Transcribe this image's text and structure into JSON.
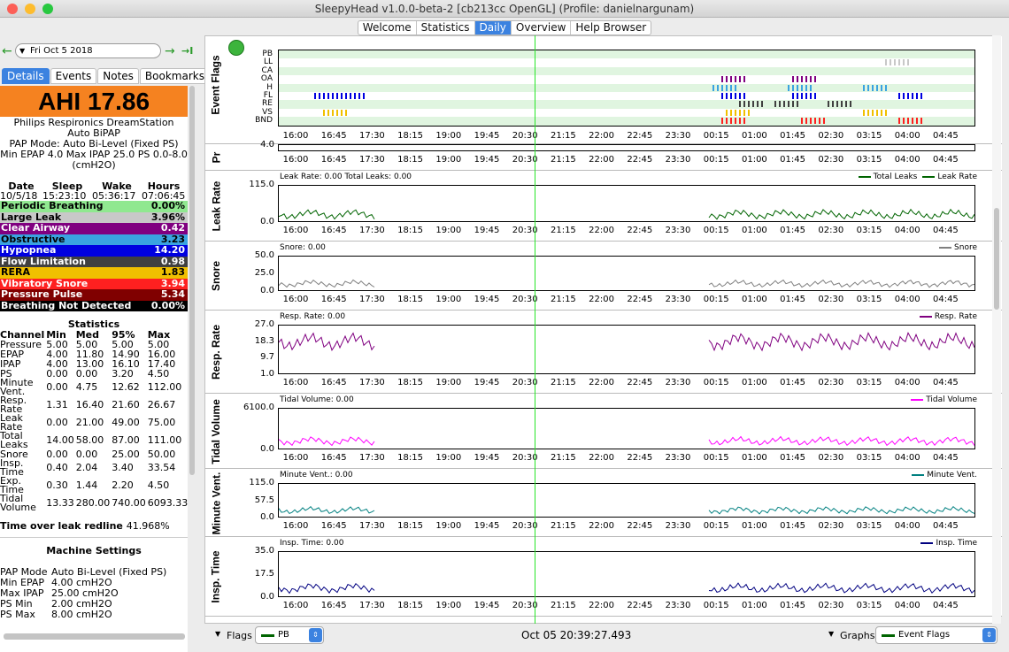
{
  "window": {
    "title": "SleepyHead v1.0.0-beta-2 [cb213cc OpenGL] (Profile: danielnargunam)"
  },
  "nav_tabs": [
    {
      "label": "Welcome"
    },
    {
      "label": "Statistics"
    },
    {
      "label": "Daily"
    },
    {
      "label": "Overview"
    },
    {
      "label": "Help Browser"
    }
  ],
  "date": {
    "value": "Fri Oct 5 2018",
    "prev_icon": "←",
    "next_icon": "→",
    "last_icon": "→I"
  },
  "left_tabs": [
    {
      "label": "Details"
    },
    {
      "label": "Events"
    },
    {
      "label": "Notes"
    },
    {
      "label": "Bookmarks"
    }
  ],
  "ahi": "AHI 17.86",
  "device": {
    "name": "Philips Respironics DreamStation",
    "model": "Auto BiPAP",
    "mode": "PAP Mode: Auto Bi-Level (Fixed PS)",
    "settings": "Min EPAP 4.0 Max IPAP 25.0 PS 0.0-8.0",
    "unit": "(cmH2O)"
  },
  "sleep": {
    "headers": [
      "Date",
      "Sleep",
      "Wake",
      "Hours"
    ],
    "values": [
      "10/5/18",
      "15:23:10",
      "05:36:17",
      "07:06:45"
    ]
  },
  "events": [
    {
      "label": "Periodic Breathing",
      "value": "0.00%",
      "bg": "#90e890",
      "fg": "#000"
    },
    {
      "label": "Large Leak",
      "value": "3.96%",
      "bg": "#c8c8c8",
      "fg": "#000"
    },
    {
      "label": "Clear Airway",
      "value": "0.42",
      "bg": "#800080",
      "fg": "#fff"
    },
    {
      "label": "Obstructive",
      "value": "3.23",
      "bg": "#3aa3e0",
      "fg": "#000"
    },
    {
      "label": "Hypopnea",
      "value": "14.20",
      "bg": "#0000e0",
      "fg": "#fff"
    },
    {
      "label": "Flow Limitation",
      "value": "0.98",
      "bg": "#404040",
      "fg": "#fff"
    },
    {
      "label": "RERA",
      "value": "1.83",
      "bg": "#f0c000",
      "fg": "#000"
    },
    {
      "label": "Vibratory Snore",
      "value": "3.94",
      "bg": "#ff2020",
      "fg": "#fff"
    },
    {
      "label": "Pressure Pulse",
      "value": "5.34",
      "bg": "#800000",
      "fg": "#fff"
    },
    {
      "label": "Breathing Not Detected",
      "value": "0.00%",
      "bg": "#000000",
      "fg": "#fff"
    }
  ],
  "statistics": {
    "title": "Statistics",
    "headers": [
      "Channel",
      "Min",
      "Med",
      "95%",
      "Max"
    ],
    "rows": [
      [
        "Pressure",
        "5.00",
        "5.00",
        "5.00",
        "5.00"
      ],
      [
        "EPAP",
        "4.00",
        "11.80",
        "14.90",
        "16.00"
      ],
      [
        "IPAP",
        "4.00",
        "13.00",
        "16.10",
        "17.40"
      ],
      [
        "PS",
        "0.00",
        "0.00",
        "3.20",
        "4.50"
      ],
      [
        "Minute Vent.",
        "0.00",
        "4.75",
        "12.62",
        "112.00"
      ],
      [
        "Resp. Rate",
        "1.31",
        "16.40",
        "21.60",
        "26.67"
      ],
      [
        "Leak Rate",
        "0.00",
        "21.00",
        "49.00",
        "75.00"
      ],
      [
        "Total Leaks",
        "14.00",
        "58.00",
        "87.00",
        "111.00"
      ],
      [
        "Snore",
        "0.00",
        "0.00",
        "25.00",
        "50.00"
      ],
      [
        "Insp. Time",
        "0.40",
        "2.04",
        "3.40",
        "33.54"
      ],
      [
        "Exp. Time",
        "0.30",
        "1.44",
        "2.20",
        "4.50"
      ],
      [
        "Tidal Volume",
        "13.33",
        "280.00",
        "740.00",
        "6093.33"
      ]
    ]
  },
  "leak_redline": {
    "label": "Time over leak redline",
    "value": "41.968%"
  },
  "machine": {
    "title": "Machine Settings",
    "rows": [
      [
        "PAP Mode",
        "Auto Bi-Level (Fixed PS)"
      ],
      [
        "Min EPAP",
        "4.00 cmH2O"
      ],
      [
        "Max IPAP",
        "25.00 cmH2O"
      ],
      [
        "PS Min",
        "2.00 cmH2O"
      ],
      [
        "PS Max",
        "8.00 cmH2O"
      ]
    ]
  },
  "x_ticks": [
    "16:00",
    "16:45",
    "17:30",
    "18:15",
    "19:00",
    "19:45",
    "20:30",
    "21:15",
    "22:00",
    "22:45",
    "23:30",
    "00:15",
    "01:00",
    "01:45",
    "02:30",
    "03:15",
    "04:00",
    "04:45"
  ],
  "event_flags": {
    "label": "Event Flags",
    "channels": [
      "PB",
      "LL",
      "CA",
      "OA",
      "H",
      "FL",
      "RE",
      "VS",
      "BND"
    ]
  },
  "graphs": [
    {
      "label": "Pr",
      "title": "",
      "legend": [],
      "yticks": [
        "4.0"
      ]
    },
    {
      "label": "Leak Rate",
      "title": "Leak Rate: 0.00 Total Leaks: 0.00",
      "legend": [
        {
          "name": "Total Leaks",
          "color": "#006400"
        },
        {
          "name": "Leak Rate",
          "color": "#006400"
        }
      ],
      "yticks": [
        "115.0",
        "0.0"
      ]
    },
    {
      "label": "Snore",
      "title": "Snore: 0.00",
      "legend": [
        {
          "name": "Snore",
          "color": "#808080"
        }
      ],
      "yticks": [
        "50.0",
        "25.0",
        "0.0"
      ]
    },
    {
      "label": "Resp. Rate",
      "title": "Resp. Rate: 0.00",
      "legend": [
        {
          "name": "Resp. Rate",
          "color": "#800080"
        }
      ],
      "yticks": [
        "27.0",
        "18.3",
        "9.7",
        "1.0"
      ]
    },
    {
      "label": "Tidal Volume",
      "title": "Tidal Volume: 0.00",
      "legend": [
        {
          "name": "Tidal Volume",
          "color": "#ff00ff"
        }
      ],
      "yticks": [
        "6100.0",
        "0.0"
      ]
    },
    {
      "label": "Minute Vent.",
      "title": "Minute Vent.: 0.00",
      "legend": [
        {
          "name": "Minute Vent.",
          "color": "#008080"
        }
      ],
      "yticks": [
        "115.0",
        "57.5",
        "0.0"
      ]
    },
    {
      "label": "Insp. Time",
      "title": "Insp. Time: 0.00",
      "legend": [
        {
          "name": "Insp. Time",
          "color": "#000080"
        }
      ],
      "yticks": [
        "35.0",
        "17.5",
        "0.0"
      ]
    }
  ],
  "bottom": {
    "flags_label": "Flags",
    "flags_value": "PB",
    "status_time": "Oct 05 20:39:27.493",
    "graphs_label": "Graphs",
    "graphs_value": "Event Flags"
  }
}
